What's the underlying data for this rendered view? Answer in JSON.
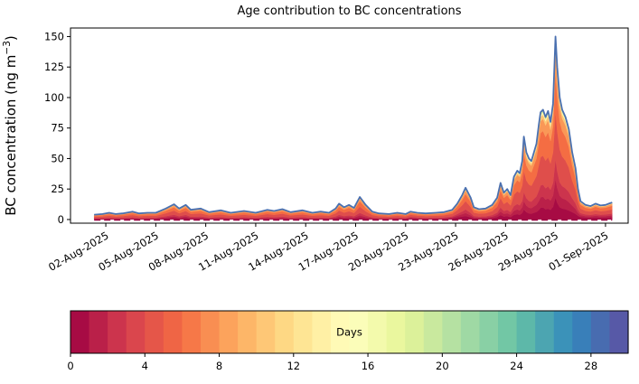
{
  "chart_data": {
    "type": "area",
    "stacked": true,
    "title": "Age contribution to BC concentrations",
    "xlabel": "",
    "ylabel_parts": {
      "pre": "BC concentration (ng m",
      "sup": "−3",
      "post": ")"
    },
    "grid": false,
    "legend": "colorbar-below",
    "time_origin": "01-Aug-2025",
    "xlim": [
      -1.12,
      32.36
    ],
    "ylim": [
      -3,
      157
    ],
    "yticks": [
      0,
      25,
      50,
      75,
      100,
      125,
      150
    ],
    "xticks": [
      {
        "t": 1,
        "label": "02-Aug-2025"
      },
      {
        "t": 4,
        "label": "05-Aug-2025"
      },
      {
        "t": 7,
        "label": "08-Aug-2025"
      },
      {
        "t": 10,
        "label": "11-Aug-2025"
      },
      {
        "t": 13,
        "label": "14-Aug-2025"
      },
      {
        "t": 16,
        "label": "17-Aug-2025"
      },
      {
        "t": 19,
        "label": "20-Aug-2025"
      },
      {
        "t": 22,
        "label": "23-Aug-2025"
      },
      {
        "t": 25,
        "label": "26-Aug-2025"
      },
      {
        "t": 28,
        "label": "29-Aug-2025"
      },
      {
        "t": 31,
        "label": "01-Sep-2025"
      }
    ],
    "total_line_color": "#4a70b0",
    "baseline_color": "#9e0142",
    "spectral_anchors": [
      "#9e0142",
      "#d53e4f",
      "#f46d43",
      "#fdae61",
      "#fee08b",
      "#ffffbf",
      "#e6f598",
      "#abdda4",
      "#66c2a5",
      "#3288bd",
      "#5e4fa2"
    ],
    "age_layers": [
      {
        "age_from": 0,
        "age_to": 1,
        "mid": 0.5
      },
      {
        "age_from": 1,
        "age_to": 2,
        "mid": 1.5
      },
      {
        "age_from": 2,
        "age_to": 3,
        "mid": 2.5
      },
      {
        "age_from": 3,
        "age_to": 5,
        "mid": 4
      },
      {
        "age_from": 5,
        "age_to": 7,
        "mid": 6
      },
      {
        "age_from": 7,
        "age_to": 9,
        "mid": 8
      },
      {
        "age_from": 9,
        "age_to": 12,
        "mid": 10.5
      },
      {
        "age_from": 12,
        "age_to": 16,
        "mid": 14
      },
      {
        "age_from": 16,
        "age_to": 22,
        "mid": 19
      },
      {
        "age_from": 22,
        "age_to": 30,
        "mid": 26
      }
    ],
    "age_mix_params": {
      "fresh_tau": 1.2,
      "aged_mu": 4.5,
      "aged_sigma": 2.6,
      "old_amp": 0.02,
      "old_mu": 14,
      "old_sigma": 6
    },
    "points_format": [
      "days_since_01-Aug-2025",
      "total_BC_ng_m-3",
      "fresh_fraction"
    ],
    "points": [
      [
        0.3,
        4,
        0.2
      ],
      [
        0.8,
        4.5,
        0.2
      ],
      [
        1.2,
        5.5,
        0.22
      ],
      [
        1.6,
        4.5,
        0.2
      ],
      [
        2.0,
        5,
        0.2
      ],
      [
        2.6,
        6.5,
        0.25
      ],
      [
        3.0,
        5,
        0.2
      ],
      [
        3.5,
        5.5,
        0.2
      ],
      [
        4.0,
        5.5,
        0.25
      ],
      [
        4.6,
        9,
        0.4
      ],
      [
        5.1,
        12.5,
        0.45
      ],
      [
        5.4,
        9,
        0.4
      ],
      [
        5.8,
        12,
        0.45
      ],
      [
        6.1,
        8,
        0.35
      ],
      [
        6.7,
        9,
        0.3
      ],
      [
        7.2,
        6,
        0.25
      ],
      [
        7.9,
        7.5,
        0.25
      ],
      [
        8.5,
        5.5,
        0.2
      ],
      [
        9.3,
        7,
        0.2
      ],
      [
        10.0,
        5.5,
        0.2
      ],
      [
        10.7,
        8,
        0.25
      ],
      [
        11.1,
        7,
        0.2
      ],
      [
        11.6,
        8.5,
        0.25
      ],
      [
        12.1,
        6,
        0.2
      ],
      [
        12.8,
        7.5,
        0.2
      ],
      [
        13.4,
        5.5,
        0.2
      ],
      [
        13.9,
        6.5,
        0.2
      ],
      [
        14.4,
        5.5,
        0.2
      ],
      [
        14.8,
        9,
        0.3
      ],
      [
        15.0,
        13,
        0.35
      ],
      [
        15.3,
        10,
        0.3
      ],
      [
        15.6,
        12,
        0.3
      ],
      [
        15.9,
        9.5,
        0.3
      ],
      [
        16.25,
        18.5,
        0.35
      ],
      [
        16.6,
        12,
        0.3
      ],
      [
        17.0,
        6.5,
        0.25
      ],
      [
        17.4,
        5,
        0.2
      ],
      [
        18.0,
        4.5,
        0.2
      ],
      [
        18.5,
        5.5,
        0.3
      ],
      [
        19.0,
        4.5,
        0.3
      ],
      [
        19.3,
        6.5,
        0.55
      ],
      [
        19.7,
        5.5,
        0.45
      ],
      [
        20.2,
        5,
        0.3
      ],
      [
        20.8,
        5.5,
        0.3
      ],
      [
        21.3,
        6,
        0.35
      ],
      [
        21.8,
        8,
        0.5
      ],
      [
        22.1,
        13,
        0.55
      ],
      [
        22.4,
        20,
        0.5
      ],
      [
        22.6,
        26,
        0.45
      ],
      [
        22.9,
        18,
        0.4
      ],
      [
        23.1,
        10,
        0.35
      ],
      [
        23.4,
        8.5,
        0.35
      ],
      [
        23.8,
        9,
        0.35
      ],
      [
        24.2,
        12,
        0.4
      ],
      [
        24.5,
        18,
        0.45
      ],
      [
        24.7,
        30,
        0.5
      ],
      [
        24.9,
        22,
        0.45
      ],
      [
        25.1,
        25,
        0.45
      ],
      [
        25.3,
        20,
        0.4
      ],
      [
        25.5,
        35,
        0.45
      ],
      [
        25.7,
        40,
        0.45
      ],
      [
        25.85,
        38,
        0.4
      ],
      [
        26.0,
        48,
        0.45
      ],
      [
        26.1,
        68,
        0.5
      ],
      [
        26.25,
        55,
        0.45
      ],
      [
        26.4,
        50,
        0.4
      ],
      [
        26.55,
        48,
        0.4
      ],
      [
        26.7,
        55,
        0.4
      ],
      [
        26.85,
        62,
        0.4
      ],
      [
        27.0,
        78,
        0.4
      ],
      [
        27.1,
        88,
        0.45
      ],
      [
        27.25,
        90,
        0.45
      ],
      [
        27.4,
        84,
        0.4
      ],
      [
        27.55,
        89,
        0.4
      ],
      [
        27.7,
        80,
        0.4
      ],
      [
        27.85,
        95,
        0.45
      ],
      [
        28.0,
        150,
        0.5
      ],
      [
        28.1,
        125,
        0.45
      ],
      [
        28.25,
        100,
        0.4
      ],
      [
        28.4,
        90,
        0.4
      ],
      [
        28.6,
        84,
        0.4
      ],
      [
        28.8,
        74,
        0.4
      ],
      [
        29.0,
        55,
        0.45
      ],
      [
        29.2,
        42,
        0.45
      ],
      [
        29.35,
        25,
        0.5
      ],
      [
        29.5,
        15,
        0.55
      ],
      [
        29.8,
        12,
        0.55
      ],
      [
        30.1,
        11,
        0.55
      ],
      [
        30.4,
        13,
        0.55
      ],
      [
        30.7,
        11.5,
        0.55
      ],
      [
        31.0,
        12,
        0.55
      ],
      [
        31.2,
        13,
        0.55
      ],
      [
        31.4,
        14,
        0.55
      ]
    ],
    "colorbar": {
      "label": "Days",
      "min": 0,
      "max": 30,
      "n_segments": 30,
      "ticks": [
        0,
        4,
        8,
        12,
        16,
        20,
        24,
        28
      ]
    }
  }
}
